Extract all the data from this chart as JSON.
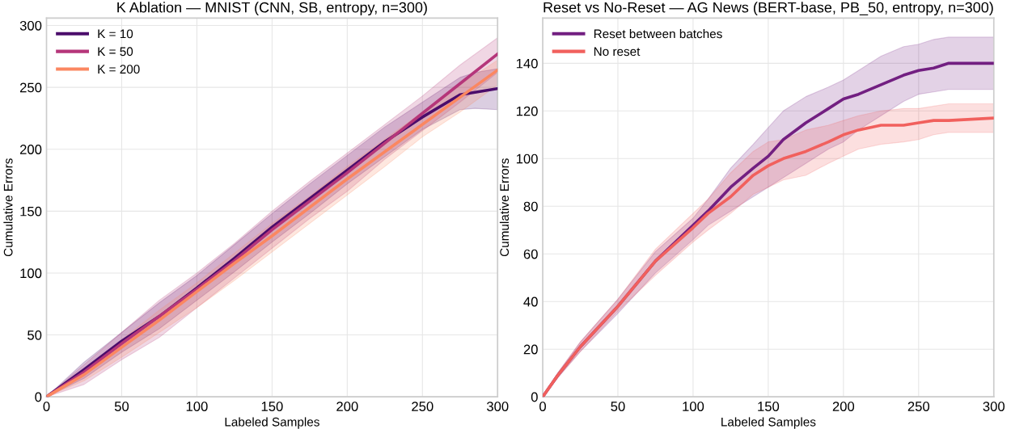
{
  "chart_data": [
    {
      "type": "line",
      "title": "K Ablation — MNIST (CNN, SB, entropy, n=300)",
      "xlabel": "Labeled Samples",
      "ylabel": "Cumulative Errors",
      "xlim": [
        0,
        300
      ],
      "xticks": [
        0,
        50,
        100,
        150,
        200,
        250,
        300
      ],
      "ylim": [
        0,
        306
      ],
      "yticks": [
        0,
        50,
        100,
        150,
        200,
        250,
        300
      ],
      "grid": true,
      "legend": "top left",
      "marker": "none",
      "line_style": "solid",
      "series": [
        {
          "name": "K = 10",
          "color": "#4b0c6b",
          "x": [
            0,
            25,
            50,
            75,
            100,
            125,
            150,
            175,
            200,
            225,
            250,
            275,
            285,
            300
          ],
          "values": [
            0,
            22,
            45,
            65,
            88,
            112,
            137,
            160,
            183,
            206,
            226,
            244,
            246,
            249
          ],
          "lower": [
            0,
            15,
            36,
            55,
            78,
            101,
            125,
            148,
            172,
            194,
            216,
            232,
            233,
            232
          ],
          "upper": [
            0,
            28,
            52,
            76,
            98,
            123,
            148,
            172,
            195,
            218,
            238,
            258,
            262,
            265
          ]
        },
        {
          "name": "K = 50",
          "color": "#b5367a",
          "x": [
            0,
            25,
            50,
            75,
            100,
            125,
            150,
            175,
            200,
            225,
            250,
            275,
            300
          ],
          "values": [
            0,
            20,
            43,
            65,
            87,
            110,
            135,
            158,
            181,
            205,
            229,
            253,
            277
          ],
          "lower": [
            0,
            10,
            30,
            48,
            72,
            96,
            120,
            144,
            166,
            192,
            215,
            238,
            262
          ],
          "upper": [
            0,
            26,
            52,
            78,
            100,
            124,
            150,
            174,
            197,
            220,
            243,
            268,
            290
          ]
        },
        {
          "name": "K = 200",
          "color": "#fb8761",
          "x": [
            0,
            25,
            50,
            75,
            100,
            125,
            150,
            175,
            200,
            225,
            250,
            275,
            300
          ],
          "values": [
            0,
            18,
            40,
            62,
            85,
            108,
            130,
            153,
            176,
            198,
            220,
            242,
            264
          ],
          "lower": [
            0,
            13,
            32,
            52,
            72,
            94,
            117,
            140,
            163,
            186,
            210,
            230,
            252
          ],
          "upper": [
            0,
            22,
            46,
            70,
            92,
            116,
            140,
            162,
            186,
            208,
            230,
            252,
            272
          ]
        }
      ]
    },
    {
      "type": "line",
      "title": "Reset vs No-Reset — AG News (BERT-base, PB_50, entropy, n=300)",
      "xlabel": "Labeled Samples",
      "ylabel": "Cumulative Errors",
      "xlim": [
        0,
        300
      ],
      "xticks": [
        0,
        50,
        100,
        150,
        200,
        250,
        300
      ],
      "ylim": [
        0,
        159
      ],
      "yticks": [
        0,
        20,
        40,
        60,
        80,
        100,
        120,
        140
      ],
      "grid": true,
      "legend": "top left",
      "marker": "none",
      "line_style": "solid",
      "series": [
        {
          "name": "Reset between batches",
          "color": "#721f81",
          "x": [
            0,
            10,
            25,
            50,
            75,
            100,
            110,
            125,
            140,
            150,
            160,
            175,
            190,
            200,
            210,
            225,
            240,
            250,
            260,
            270,
            300
          ],
          "values": [
            0,
            9,
            21,
            38,
            57,
            72,
            78,
            88,
            96,
            101,
            108,
            115,
            121,
            125,
            127,
            131,
            135,
            137,
            138,
            140,
            140
          ],
          "lower": [
            0,
            8,
            19,
            35,
            52,
            66,
            72,
            78,
            84,
            88,
            92,
            98,
            104,
            107,
            112,
            118,
            124,
            127,
            128,
            129,
            129
          ],
          "upper": [
            0,
            10,
            23,
            41,
            61,
            75,
            83,
            96,
            106,
            113,
            120,
            126,
            130,
            133,
            137,
            143,
            147,
            148,
            150,
            151,
            151
          ]
        },
        {
          "name": "No reset",
          "color": "#f1605d",
          "x": [
            0,
            10,
            25,
            50,
            75,
            100,
            110,
            125,
            140,
            150,
            160,
            175,
            190,
            200,
            210,
            225,
            240,
            250,
            260,
            270,
            300
          ],
          "values": [
            0,
            9,
            21,
            38,
            57,
            71,
            77,
            84,
            93,
            97,
            100,
            103,
            107,
            110,
            112,
            114,
            114,
            115,
            116,
            116,
            117
          ],
          "lower": [
            0,
            8,
            19,
            36,
            51,
            65,
            70,
            77,
            85,
            88,
            91,
            93,
            98,
            101,
            104,
            106,
            107,
            108,
            110,
            111,
            111
          ],
          "upper": [
            0,
            10,
            23,
            41,
            62,
            77,
            83,
            94,
            103,
            107,
            108,
            112,
            114,
            116,
            118,
            120,
            121,
            121,
            122,
            123,
            123
          ]
        }
      ]
    }
  ]
}
